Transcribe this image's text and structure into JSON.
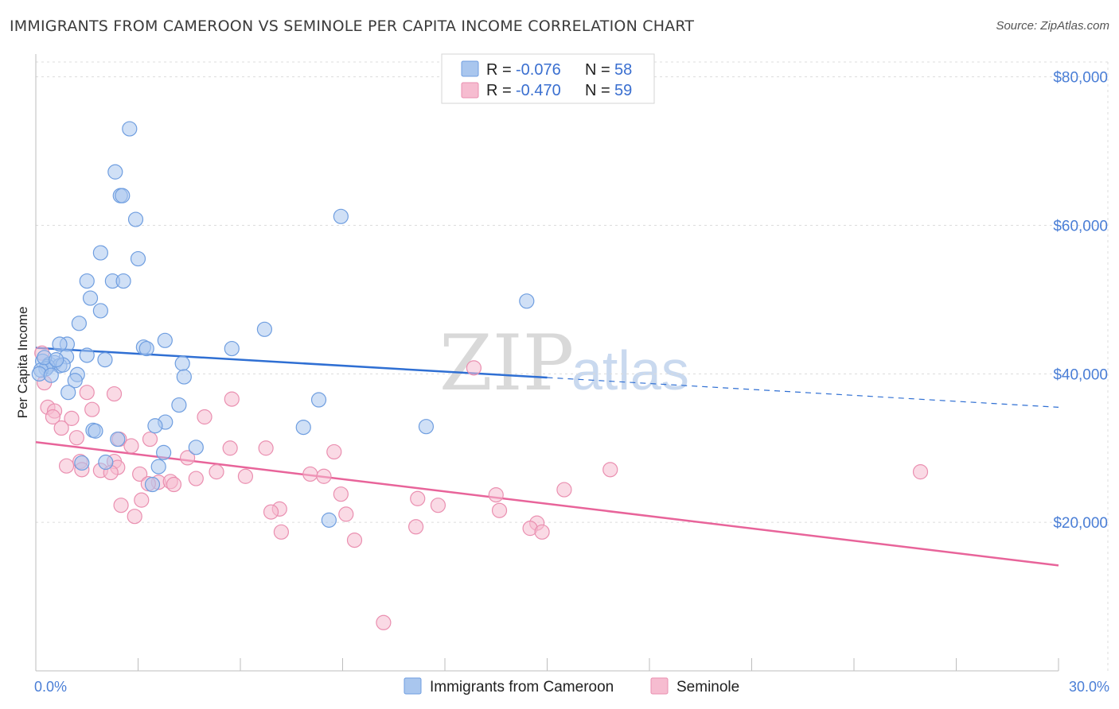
{
  "title": "IMMIGRANTS FROM CAMEROON VS SEMINOLE PER CAPITA INCOME CORRELATION CHART",
  "source": "Source: ZipAtlas.com",
  "watermark": {
    "zip": "ZIP",
    "atlas": "atlas"
  },
  "colors": {
    "blue_fill": "#a9c6ee",
    "blue_stroke": "#6f9ee0",
    "blue_line": "#2f6fd3",
    "pink_fill": "#f6bcd0",
    "pink_stroke": "#ea8fb0",
    "pink_line": "#e8649a",
    "grid": "#dcdcdc",
    "tick_text": "#4a7ed6"
  },
  "legend": {
    "rows": [
      {
        "r_label": "R =",
        "r_value": "-0.076",
        "n_label": "N =",
        "n_value": "58"
      },
      {
        "r_label": "R =",
        "r_value": "-0.470",
        "n_label": "N =",
        "n_value": "59"
      }
    ]
  },
  "bottom_legend": [
    "Immigrants from Cameroon",
    "Seminole"
  ],
  "chart_data": {
    "type": "scatter",
    "title": "IMMIGRANTS FROM CAMEROON VS SEMINOLE PER CAPITA INCOME CORRELATION CHART",
    "xlabel": "",
    "ylabel": "Per Capita Income",
    "xlim": [
      0,
      30
    ],
    "ylim": [
      0,
      82000
    ],
    "x_tick_labels": [
      "0.0%",
      "30.0%"
    ],
    "y_ticks": [
      20000,
      40000,
      60000,
      80000
    ],
    "y_tick_labels": [
      "$20,000",
      "$40,000",
      "$60,000",
      "$80,000"
    ],
    "grid": true,
    "legend_position": "top-center",
    "series": [
      {
        "name": "Immigrants from Cameroon",
        "color": "#a9c6ee",
        "trend": {
          "x": [
            0,
            15
          ],
          "y": [
            43500,
            39500
          ],
          "dashed_extension": {
            "x": [
              15,
              30
            ],
            "y": [
              39500,
              35500
            ]
          }
        },
        "points": [
          [
            2.75,
            73000
          ],
          [
            2.33,
            67200
          ],
          [
            2.48,
            64000
          ],
          [
            2.54,
            64000
          ],
          [
            2.93,
            60800
          ],
          [
            8.95,
            61200
          ],
          [
            1.9,
            56300
          ],
          [
            3.0,
            55500
          ],
          [
            1.5,
            52500
          ],
          [
            2.25,
            52500
          ],
          [
            2.57,
            52500
          ],
          [
            1.6,
            50200
          ],
          [
            14.4,
            49800
          ],
          [
            1.9,
            48500
          ],
          [
            1.27,
            46800
          ],
          [
            6.71,
            46000
          ],
          [
            0.92,
            44000
          ],
          [
            0.7,
            44000
          ],
          [
            3.79,
            44500
          ],
          [
            3.16,
            43600
          ],
          [
            3.25,
            43400
          ],
          [
            5.75,
            43400
          ],
          [
            1.5,
            42500
          ],
          [
            0.9,
            42300
          ],
          [
            2.03,
            41900
          ],
          [
            4.3,
            41400
          ],
          [
            0.2,
            41700
          ],
          [
            0.4,
            41300
          ],
          [
            0.55,
            41500
          ],
          [
            0.7,
            41100
          ],
          [
            0.8,
            41200
          ],
          [
            0.35,
            41000
          ],
          [
            0.3,
            40700
          ],
          [
            0.15,
            40500
          ],
          [
            0.1,
            40000
          ],
          [
            0.45,
            39800
          ],
          [
            1.22,
            39900
          ],
          [
            1.15,
            39100
          ],
          [
            4.35,
            39600
          ],
          [
            0.95,
            37500
          ],
          [
            8.3,
            36500
          ],
          [
            4.2,
            35800
          ],
          [
            3.8,
            33500
          ],
          [
            3.5,
            33000
          ],
          [
            7.85,
            32800
          ],
          [
            11.45,
            32900
          ],
          [
            1.68,
            32400
          ],
          [
            1.75,
            32300
          ],
          [
            2.4,
            31200
          ],
          [
            4.7,
            30100
          ],
          [
            3.75,
            29400
          ],
          [
            1.35,
            28000
          ],
          [
            2.05,
            28100
          ],
          [
            3.6,
            27500
          ],
          [
            3.42,
            25100
          ],
          [
            8.6,
            20300
          ],
          [
            0.25,
            42200
          ],
          [
            0.6,
            41900
          ]
        ]
      },
      {
        "name": "Seminole",
        "color": "#f6bcd0",
        "trend": {
          "x": [
            0,
            30
          ],
          "y": [
            30800,
            14200
          ]
        },
        "points": [
          [
            12.85,
            40800
          ],
          [
            0.18,
            42800
          ],
          [
            0.25,
            38800
          ],
          [
            1.5,
            37500
          ],
          [
            2.3,
            37300
          ],
          [
            5.75,
            36600
          ],
          [
            0.35,
            35500
          ],
          [
            0.55,
            35000
          ],
          [
            1.65,
            35200
          ],
          [
            0.5,
            34200
          ],
          [
            1.05,
            34000
          ],
          [
            4.95,
            34200
          ],
          [
            0.75,
            32700
          ],
          [
            1.2,
            31400
          ],
          [
            2.45,
            31200
          ],
          [
            3.35,
            31200
          ],
          [
            2.8,
            30300
          ],
          [
            5.7,
            30000
          ],
          [
            6.75,
            30000
          ],
          [
            8.75,
            29500
          ],
          [
            4.45,
            28700
          ],
          [
            1.3,
            28200
          ],
          [
            0.9,
            27600
          ],
          [
            2.3,
            28200
          ],
          [
            2.4,
            27400
          ],
          [
            16.85,
            27100
          ],
          [
            25.95,
            26800
          ],
          [
            1.35,
            27100
          ],
          [
            1.9,
            27000
          ],
          [
            2.2,
            26700
          ],
          [
            3.05,
            26500
          ],
          [
            5.3,
            26800
          ],
          [
            8.05,
            26500
          ],
          [
            8.45,
            26200
          ],
          [
            6.15,
            26200
          ],
          [
            4.7,
            25900
          ],
          [
            3.6,
            25400
          ],
          [
            3.95,
            25500
          ],
          [
            4.05,
            25100
          ],
          [
            3.3,
            25200
          ],
          [
            15.5,
            24400
          ],
          [
            8.95,
            23800
          ],
          [
            13.5,
            23700
          ],
          [
            3.1,
            23000
          ],
          [
            11.2,
            23200
          ],
          [
            2.5,
            22300
          ],
          [
            11.8,
            22300
          ],
          [
            7.15,
            21800
          ],
          [
            6.9,
            21400
          ],
          [
            9.1,
            21100
          ],
          [
            13.6,
            21600
          ],
          [
            2.9,
            20800
          ],
          [
            14.7,
            19900
          ],
          [
            11.15,
            19400
          ],
          [
            14.5,
            19200
          ],
          [
            14.85,
            18700
          ],
          [
            7.2,
            18700
          ],
          [
            9.35,
            17600
          ],
          [
            10.2,
            6500
          ]
        ]
      }
    ]
  }
}
